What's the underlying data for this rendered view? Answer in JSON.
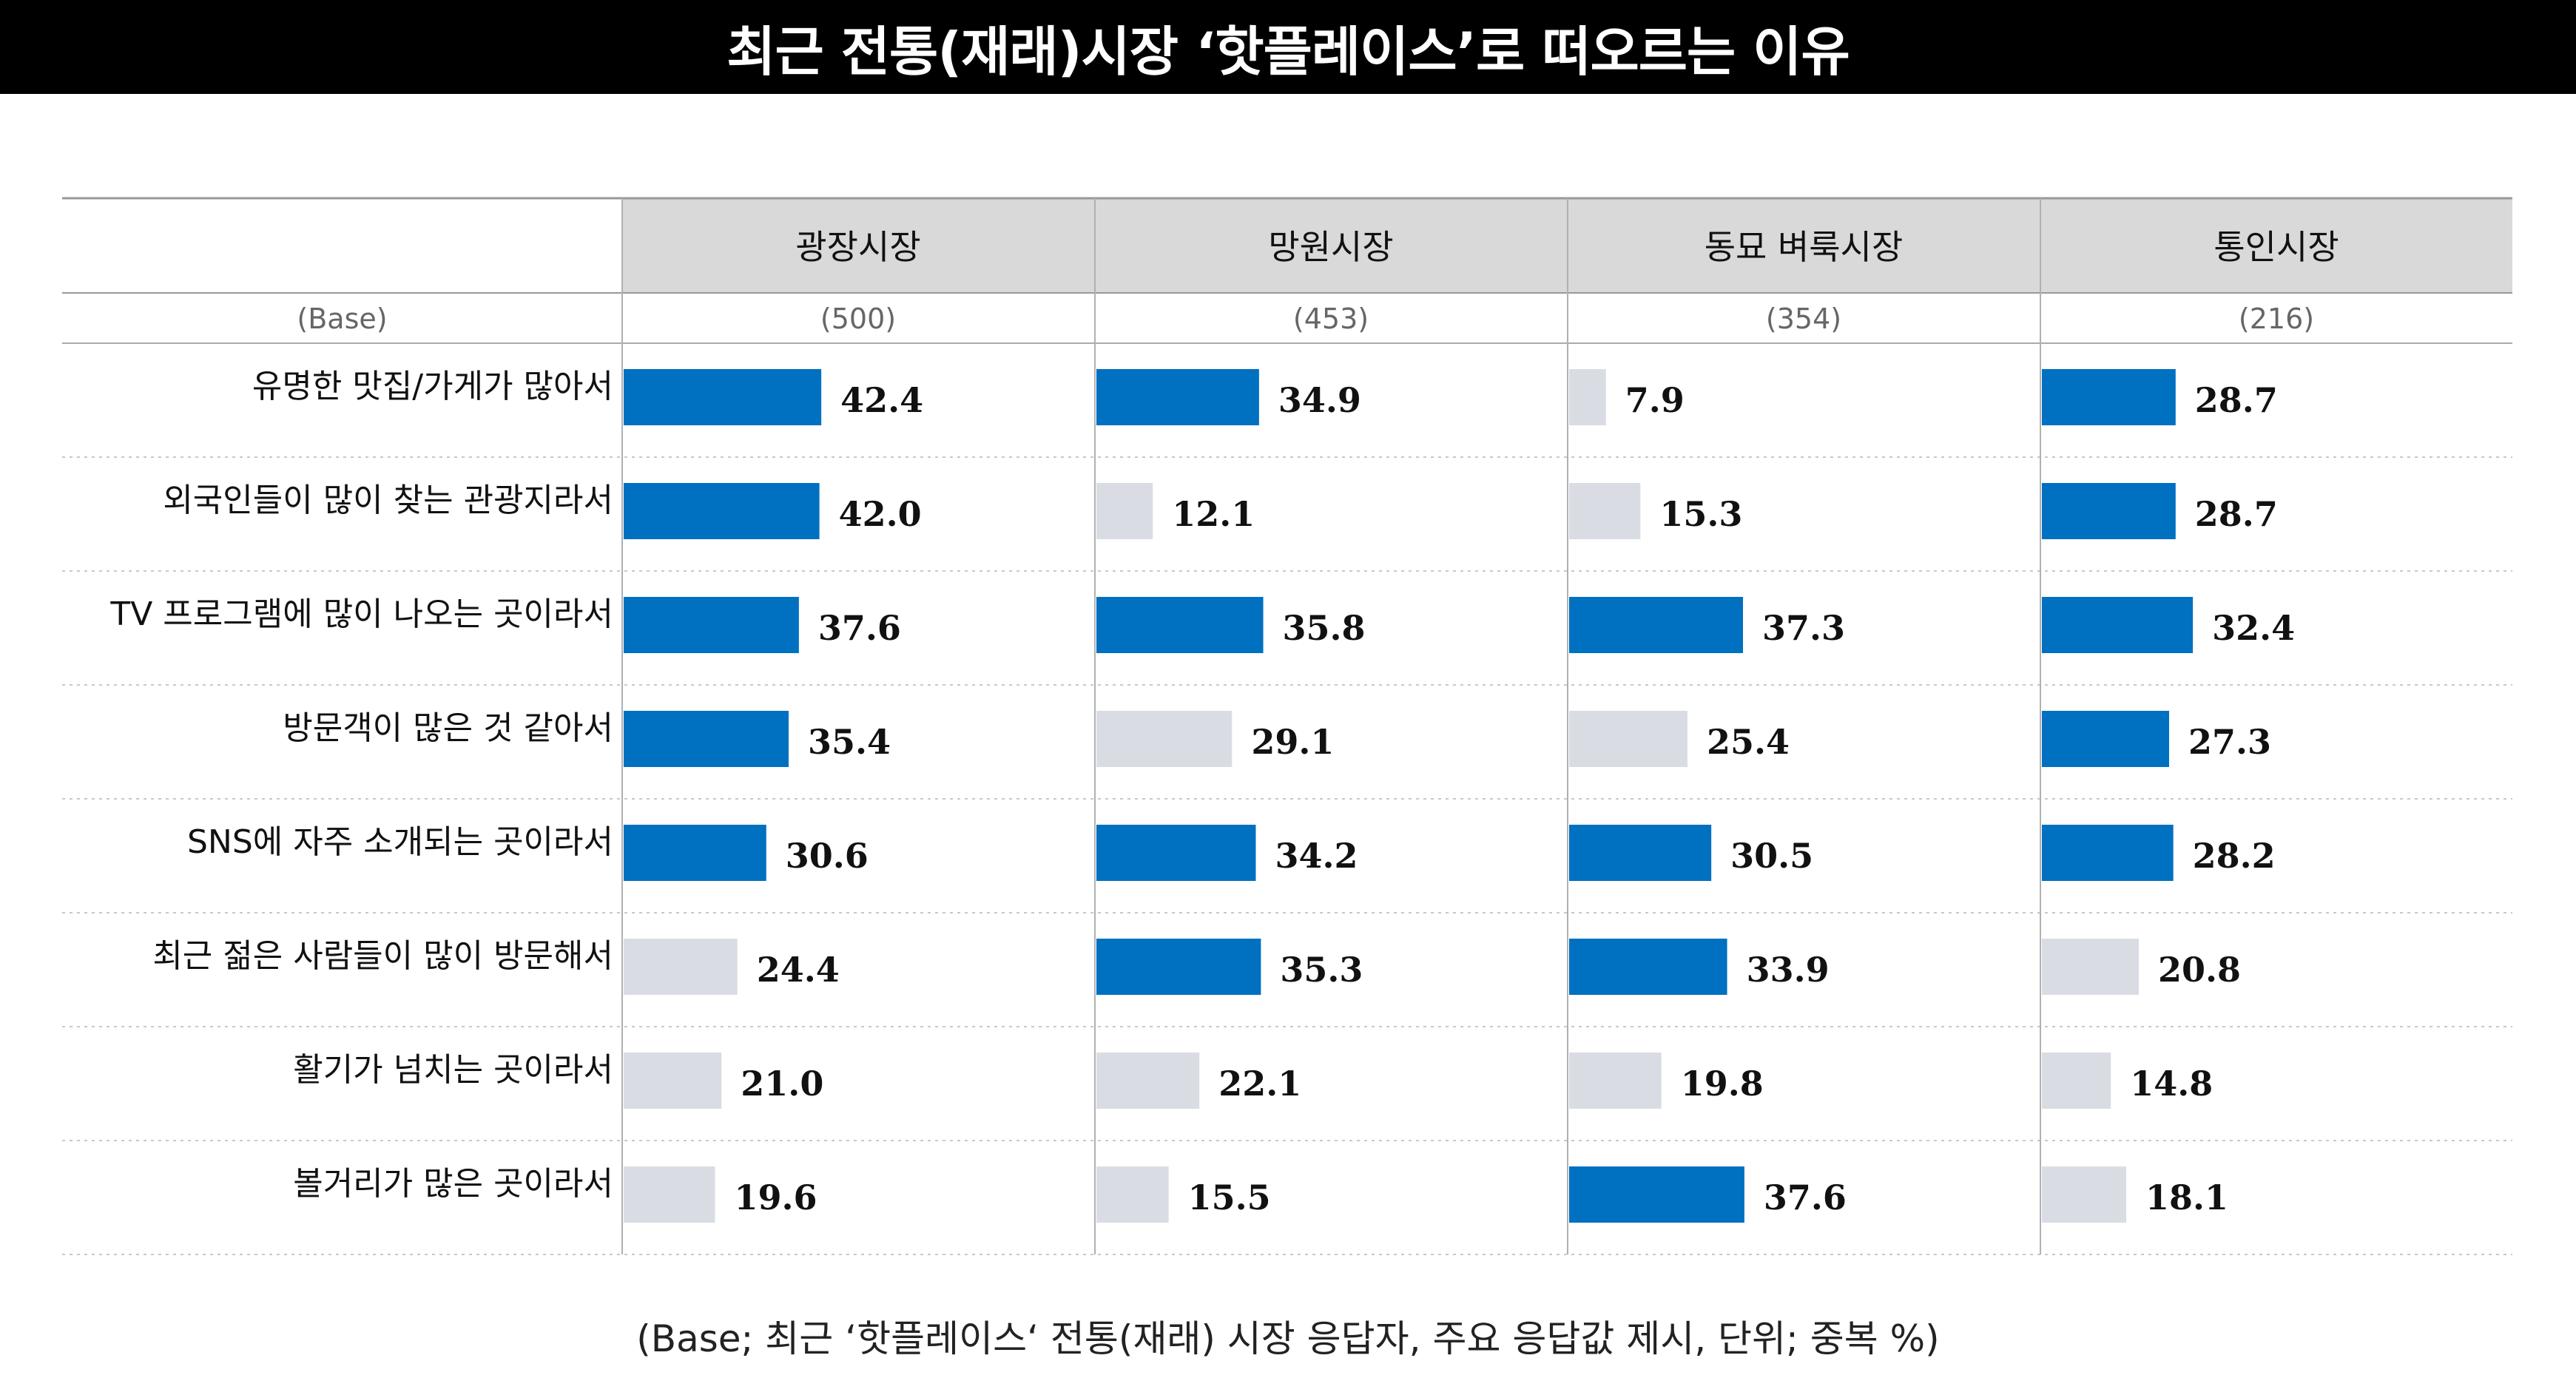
{
  "title": "최근 전통(재래)시장 ‘핫플레이스’로 떠오르는 이유",
  "footnote": "(Base; 최근 ‘핫플레이스‘ 전통(재래) 시장 응답자, 주요 응답값 제시, 단위; 중복 %)",
  "colors": {
    "highlight": "#0070c0",
    "normal": "#d9dde3",
    "header_bg": "#d9d9d9",
    "title_bg": "#000000"
  },
  "chart_data": {
    "type": "bar",
    "orientation": "horizontal",
    "base_label": "(Base)",
    "categories": [
      "유명한 맛집/가게가 많아서",
      "외국인들이 많이 찾는 관광지라서",
      "TV 프로그램에 많이 나오는 곳이라서",
      "방문객이 많은 것 같아서",
      "SNS에 자주 소개되는 곳이라서",
      "최근 젊은 사람들이 많이 방문해서",
      "활기가 넘치는 곳이라서",
      "볼거리가 많은 곳이라서"
    ],
    "series": [
      {
        "name": "광장시장",
        "base": "(500)",
        "values": [
          42.4,
          42.0,
          37.6,
          35.4,
          30.6,
          24.4,
          21.0,
          19.6
        ],
        "labels": [
          "42.4",
          "42.0",
          "37.6",
          "35.4",
          "30.6",
          "24.4",
          "21.0",
          "19.6"
        ],
        "highlight": [
          true,
          true,
          true,
          true,
          true,
          false,
          false,
          false
        ]
      },
      {
        "name": "망원시장",
        "base": "(453)",
        "values": [
          34.9,
          12.1,
          35.8,
          29.1,
          34.2,
          35.3,
          22.1,
          15.5
        ],
        "labels": [
          "34.9",
          "12.1",
          "35.8",
          "29.1",
          "34.2",
          "35.3",
          "22.1",
          "15.5"
        ],
        "highlight": [
          true,
          false,
          true,
          false,
          true,
          true,
          false,
          false
        ]
      },
      {
        "name": "동묘 벼룩시장",
        "base": "(354)",
        "values": [
          7.9,
          15.3,
          37.3,
          25.4,
          30.5,
          33.9,
          19.8,
          37.6
        ],
        "labels": [
          "7.9",
          "15.3",
          "37.3",
          "25.4",
          "30.5",
          "33.9",
          "19.8",
          "37.6"
        ],
        "highlight": [
          false,
          false,
          true,
          false,
          true,
          true,
          false,
          true
        ]
      },
      {
        "name": "통인시장",
        "base": "(216)",
        "values": [
          28.7,
          28.7,
          32.4,
          27.3,
          28.2,
          20.8,
          14.8,
          18.1
        ],
        "labels": [
          "28.7",
          "28.7",
          "32.4",
          "27.3",
          "28.2",
          "20.8",
          "14.8",
          "18.1"
        ],
        "highlight": [
          true,
          true,
          true,
          true,
          true,
          false,
          false,
          false
        ]
      }
    ],
    "unit": "%"
  }
}
